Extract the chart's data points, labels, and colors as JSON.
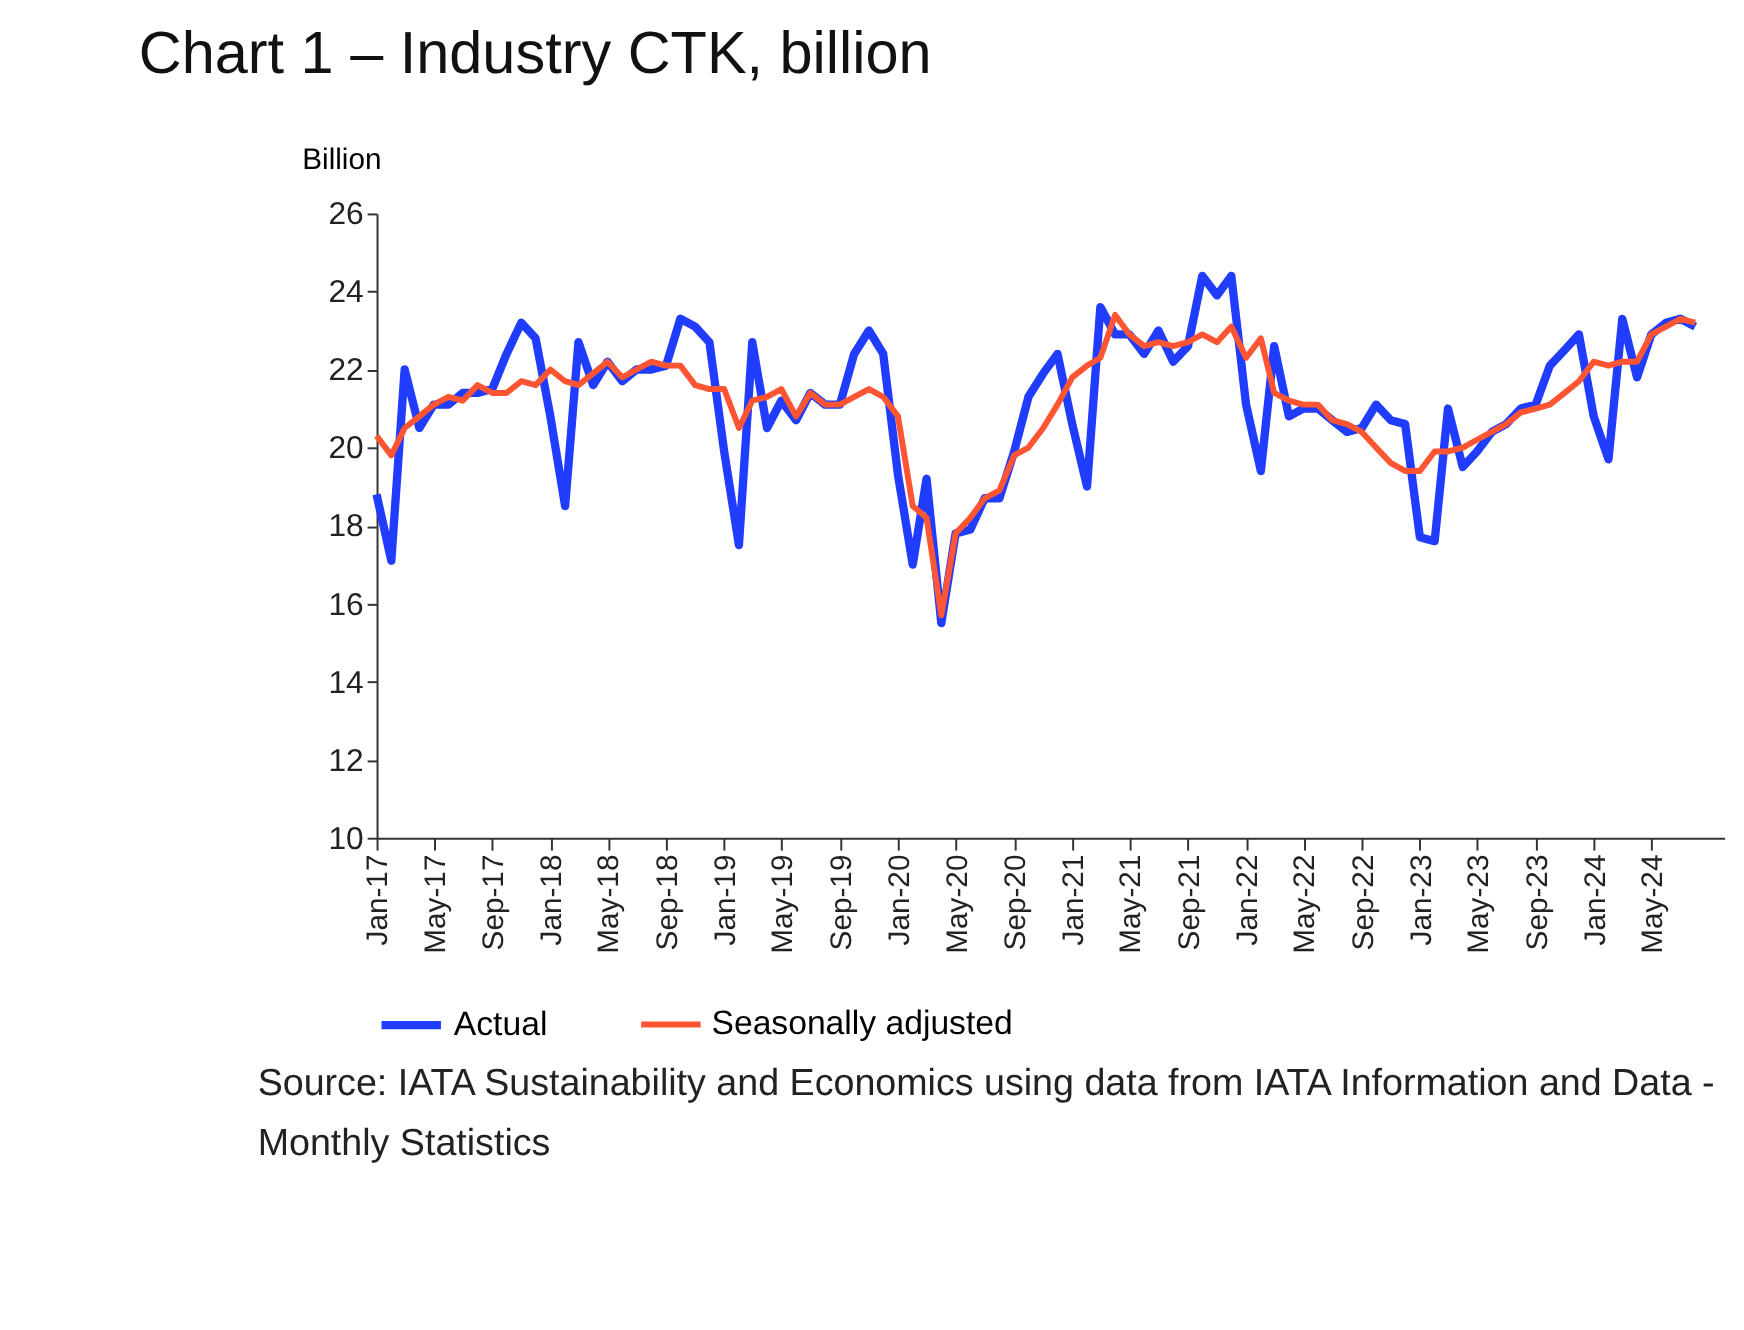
{
  "chart_data": {
    "type": "line",
    "title": "Chart 1 – Industry CTK, billion",
    "ylabel": "Billion",
    "x": [
      "2017-01",
      "2017-02",
      "2017-03",
      "2017-04",
      "2017-05",
      "2017-06",
      "2017-07",
      "2017-08",
      "2017-09",
      "2017-10",
      "2017-11",
      "2017-12",
      "2018-01",
      "2018-02",
      "2018-03",
      "2018-04",
      "2018-05",
      "2018-06",
      "2018-07",
      "2018-08",
      "2018-09",
      "2018-10",
      "2018-11",
      "2018-12",
      "2019-01",
      "2019-02",
      "2019-03",
      "2019-04",
      "2019-05",
      "2019-06",
      "2019-07",
      "2019-08",
      "2019-09",
      "2019-10",
      "2019-11",
      "2019-12",
      "2020-01",
      "2020-02",
      "2020-03",
      "2020-04",
      "2020-05",
      "2020-06",
      "2020-07",
      "2020-08",
      "2020-09",
      "2020-10",
      "2020-11",
      "2020-12",
      "2021-01",
      "2021-02",
      "2021-03",
      "2021-04",
      "2021-05",
      "2021-06",
      "2021-07",
      "2021-08",
      "2021-09",
      "2021-10",
      "2021-11",
      "2021-12",
      "2022-01",
      "2022-02",
      "2022-03",
      "2022-04",
      "2022-05",
      "2022-06",
      "2022-07",
      "2022-08",
      "2022-09",
      "2022-10",
      "2022-11",
      "2022-12",
      "2023-01",
      "2023-02",
      "2023-03",
      "2023-04",
      "2023-05",
      "2023-06",
      "2023-07",
      "2023-08",
      "2023-09",
      "2023-10",
      "2023-11",
      "2023-12",
      "2024-01",
      "2024-02",
      "2024-03",
      "2024-04",
      "2024-05",
      "2024-06",
      "2024-07",
      "2024-08"
    ],
    "series": [
      {
        "name": "Actual",
        "color": "#1f3cff",
        "values": [
          18.8,
          17.1,
          22.0,
          20.5,
          21.1,
          21.1,
          21.4,
          21.4,
          21.5,
          22.4,
          23.2,
          22.8,
          20.8,
          18.5,
          22.7,
          21.6,
          22.2,
          21.7,
          22.0,
          22.0,
          22.1,
          23.3,
          23.1,
          22.7,
          19.9,
          17.5,
          22.7,
          20.5,
          21.2,
          20.7,
          21.4,
          21.1,
          21.1,
          22.4,
          23.0,
          22.4,
          19.3,
          17.0,
          19.2,
          15.5,
          17.8,
          17.9,
          18.7,
          18.7,
          19.9,
          21.3,
          21.9,
          22.4,
          20.6,
          19.0,
          23.6,
          22.9,
          22.9,
          22.4,
          23.0,
          22.2,
          22.6,
          24.4,
          23.9,
          24.4,
          21.1,
          19.4,
          22.6,
          20.8,
          21.0,
          21.0,
          20.7,
          20.4,
          20.5,
          21.1,
          20.7,
          20.6,
          17.7,
          17.6,
          21.0,
          19.5,
          19.9,
          20.4,
          20.6,
          21.0,
          21.1,
          22.1,
          22.5,
          22.9,
          20.8,
          19.7,
          23.3,
          21.8,
          22.9,
          23.2,
          23.3,
          23.1
        ]
      },
      {
        "name": "Seasonally adjusted",
        "color": "#ff5533",
        "values": [
          20.3,
          19.8,
          20.5,
          20.8,
          21.1,
          21.3,
          21.2,
          21.6,
          21.4,
          21.4,
          21.7,
          21.6,
          22.0,
          21.7,
          21.6,
          21.9,
          22.2,
          21.8,
          22.0,
          22.2,
          22.1,
          22.1,
          21.6,
          21.5,
          21.5,
          20.5,
          21.2,
          21.3,
          21.5,
          20.8,
          21.4,
          21.1,
          21.1,
          21.3,
          21.5,
          21.3,
          20.8,
          18.5,
          18.2,
          15.7,
          17.8,
          18.2,
          18.7,
          18.9,
          19.8,
          20.0,
          20.5,
          21.1,
          21.8,
          22.1,
          22.3,
          23.4,
          22.9,
          22.6,
          22.7,
          22.6,
          22.7,
          22.9,
          22.7,
          23.1,
          22.3,
          22.8,
          21.4,
          21.2,
          21.1,
          21.1,
          20.7,
          20.6,
          20.4,
          20.0,
          19.6,
          19.4,
          19.4,
          19.9,
          19.9,
          20.0,
          20.2,
          20.4,
          20.6,
          20.9,
          21.0,
          21.1,
          21.4,
          21.7,
          22.2,
          22.1,
          22.2,
          22.2,
          22.9,
          23.1,
          23.3,
          23.2
        ]
      }
    ],
    "xlim": [
      "2017-01",
      "2024-10"
    ],
    "xticks": [
      {
        "value": "2017-01",
        "label": "Jan-17"
      },
      {
        "value": "2017-05",
        "label": "May-17"
      },
      {
        "value": "2017-09",
        "label": "Sep-17"
      },
      {
        "value": "2018-01",
        "label": "Jan-18"
      },
      {
        "value": "2018-05",
        "label": "May-18"
      },
      {
        "value": "2018-09",
        "label": "Sep-18"
      },
      {
        "value": "2019-01",
        "label": "Jan-19"
      },
      {
        "value": "2019-05",
        "label": "May-19"
      },
      {
        "value": "2019-09",
        "label": "Sep-19"
      },
      {
        "value": "2020-01",
        "label": "Jan-20"
      },
      {
        "value": "2020-05",
        "label": "May-20"
      },
      {
        "value": "2020-09",
        "label": "Sep-20"
      },
      {
        "value": "2021-01",
        "label": "Jan-21"
      },
      {
        "value": "2021-05",
        "label": "May-21"
      },
      {
        "value": "2021-09",
        "label": "Sep-21"
      },
      {
        "value": "2022-01",
        "label": "Jan-22"
      },
      {
        "value": "2022-05",
        "label": "May-22"
      },
      {
        "value": "2022-09",
        "label": "Sep-22"
      },
      {
        "value": "2023-01",
        "label": "Jan-23"
      },
      {
        "value": "2023-05",
        "label": "May-23"
      },
      {
        "value": "2023-09",
        "label": "Sep-23"
      },
      {
        "value": "2024-01",
        "label": "Jan-24"
      },
      {
        "value": "2024-05",
        "label": "May-24"
      }
    ],
    "ylim": [
      10,
      26
    ],
    "yticks": [
      10,
      12,
      14,
      16,
      18,
      20,
      22,
      24,
      26
    ],
    "grid": false,
    "legend": "bottom",
    "marker": "none",
    "line_style": "solid",
    "annotations": [
      "Source: IATA Sustainability and Economics using data from IATA Information and Data - Monthly Statistics"
    ]
  }
}
